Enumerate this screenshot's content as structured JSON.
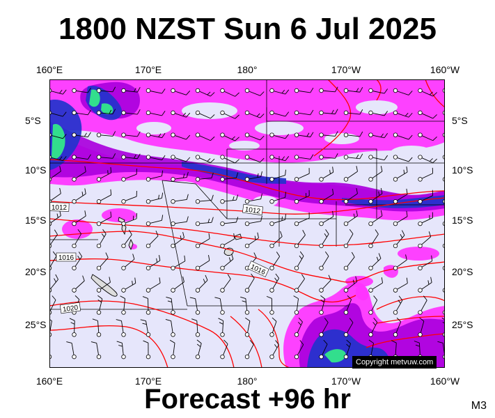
{
  "title": "1800 NZST Sun 6 Jul 2025",
  "subtitle": "Forecast +96 hr",
  "map_code": "M3",
  "copyright": "Copyright metvuw.com",
  "lon_labels": [
    "160°E",
    "170°E",
    "180°",
    "170°W",
    "160°W"
  ],
  "lat_labels": [
    "5°S",
    "10°S",
    "15°S",
    "20°S",
    "25°S"
  ],
  "isobar_labels": [
    "1012",
    "1012",
    "1016",
    "1016",
    "1020"
  ],
  "colors": {
    "ocean": "#e6e6fb",
    "rain_light": "#ff33ff",
    "rain_mid": "#aa00dd",
    "rain_heavy": "#2233cc",
    "rain_extreme": "#33ee88",
    "isobar": "#ff0000"
  }
}
